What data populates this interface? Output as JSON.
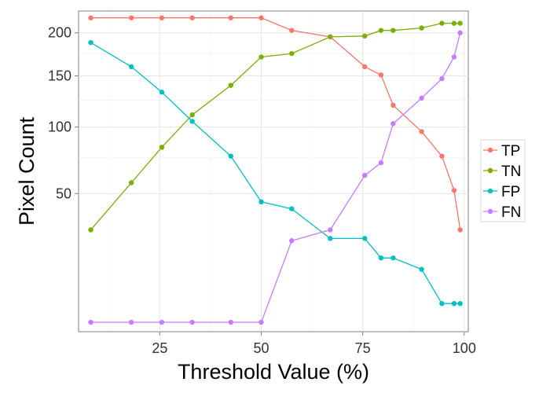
{
  "chart_data": {
    "type": "line",
    "title": "",
    "xlabel": "Threshold Value (%)",
    "ylabel": "Pixel Count",
    "xlim": [
      5,
      101
    ],
    "ylim": [
      1,
      228
    ],
    "y_scale": "sqrt",
    "x_ticks": [
      25,
      50,
      75,
      100
    ],
    "y_ticks": [
      50,
      100,
      150,
      200
    ],
    "grid": true,
    "legend_position": "right",
    "x": [
      8,
      18,
      25.5,
      33,
      42.5,
      50,
      57.5,
      67,
      75.5,
      79.5,
      82.5,
      89.5,
      94.5,
      97.5,
      99
    ],
    "series": [
      {
        "name": "TP",
        "color": "#F8766D",
        "values": [
          219,
          219,
          219,
          219,
          219,
          219,
          203,
          195,
          160,
          151,
          120,
          96,
          76,
          52,
          30
        ]
      },
      {
        "name": "TN",
        "color": "#7CAE00",
        "values": [
          30,
          57,
          83,
          111,
          140,
          171,
          175,
          195,
          196,
          203,
          203,
          206,
          212,
          212,
          212
        ]
      },
      {
        "name": "FP",
        "color": "#00BFC4",
        "values": [
          188,
          160,
          133,
          105,
          76,
          45,
          41,
          26,
          26,
          18,
          18,
          14,
          5,
          5,
          5
        ]
      },
      {
        "name": "FN",
        "color": "#C77CFF",
        "values": [
          2,
          2,
          2,
          2,
          2,
          2,
          25,
          30,
          62,
          71,
          103,
          127,
          147,
          171,
          200
        ]
      }
    ]
  }
}
